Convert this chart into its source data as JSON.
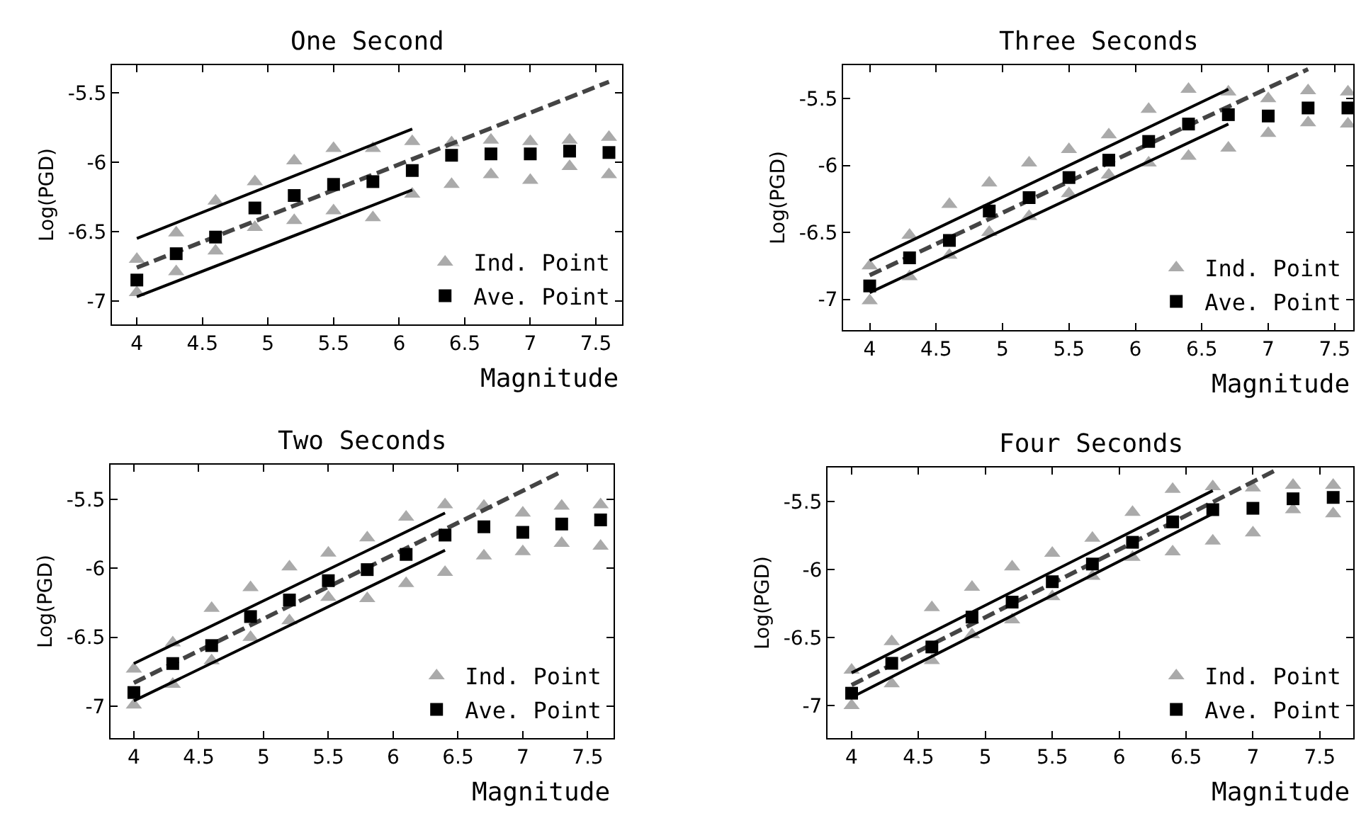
{
  "chart_data": [
    {
      "type": "scatter",
      "title": "One Second",
      "xlabel": "Magnitude",
      "ylabel": "Log(PGD)",
      "xlim": [
        3.81,
        7.7
      ],
      "ylim": [
        -7.17,
        -5.3
      ],
      "xticks": [
        4,
        4.5,
        5,
        5.5,
        6,
        6.5,
        7,
        7.5
      ],
      "yticks": [
        -7,
        -6.5,
        -6,
        -5.5
      ],
      "legend": "bottom right",
      "series": [
        {
          "name": "Ind. Point",
          "marker": "triangle",
          "color": "#aaaaaa",
          "x": [
            4,
            4,
            4.3,
            4.3,
            4.6,
            4.6,
            4.9,
            4.9,
            5.2,
            5.2,
            5.5,
            5.5,
            5.8,
            5.8,
            6.1,
            6.1,
            6.4,
            6.4,
            6.7,
            6.7,
            7.0,
            7.0,
            7.3,
            7.3,
            7.6,
            7.6
          ],
          "values": [
            -6.7,
            -6.94,
            -6.51,
            -6.79,
            -6.28,
            -6.64,
            -6.14,
            -6.47,
            -5.99,
            -6.42,
            -5.9,
            -6.35,
            -5.9,
            -6.4,
            -5.85,
            -6.23,
            -5.86,
            -6.16,
            -5.84,
            -6.09,
            -5.85,
            -6.13,
            -5.84,
            -6.03,
            -5.82,
            -6.09
          ]
        },
        {
          "type": "line",
          "line_style": "dashed",
          "color": "#444444",
          "x": [
            4,
            7.6
          ],
          "values": [
            -6.76,
            -5.42
          ]
        },
        {
          "type": "line",
          "line_style": "solid",
          "color": "#000000",
          "x": [
            4,
            6.1
          ],
          "values": [
            -6.55,
            -5.76
          ]
        },
        {
          "type": "line",
          "line_style": "solid",
          "color": "#000000",
          "x": [
            4,
            6.1
          ],
          "values": [
            -6.97,
            -6.2
          ]
        },
        {
          "name": "Ave. Point",
          "marker": "square",
          "color": "#000000",
          "x": [
            4,
            4.3,
            4.6,
            4.9,
            5.2,
            5.5,
            5.8,
            6.1,
            6.4,
            6.7,
            7.0,
            7.3,
            7.6
          ],
          "values": [
            -6.85,
            -6.66,
            -6.54,
            -6.33,
            -6.24,
            -6.16,
            -6.14,
            -6.06,
            -5.95,
            -5.94,
            -5.94,
            -5.92,
            -5.93
          ]
        }
      ]
    },
    {
      "type": "scatter",
      "title": "Three Seconds",
      "xlabel": "Magnitude",
      "ylabel": "Log(PGD)",
      "xlim": [
        3.8,
        7.64
      ],
      "ylim": [
        -7.23,
        -5.25
      ],
      "xticks": [
        4,
        4.5,
        5,
        5.5,
        6,
        6.5,
        7,
        7.5
      ],
      "yticks": [
        -7,
        -6.5,
        -6,
        -5.5
      ],
      "legend": "bottom right",
      "series": [
        {
          "name": "Ind. Point",
          "marker": "triangle",
          "color": "#aaaaaa",
          "x": [
            4,
            4,
            4.3,
            4.3,
            4.6,
            4.6,
            4.9,
            4.9,
            5.2,
            5.2,
            5.5,
            5.5,
            5.8,
            5.8,
            6.1,
            6.1,
            6.4,
            6.4,
            6.7,
            6.7,
            7.0,
            7.0,
            7.3,
            7.3,
            7.6,
            7.6
          ],
          "values": [
            -6.75,
            -7.01,
            -6.52,
            -6.83,
            -6.29,
            -6.67,
            -6.13,
            -6.5,
            -5.98,
            -6.38,
            -5.88,
            -6.21,
            -5.77,
            -6.07,
            -5.58,
            -5.98,
            -5.43,
            -5.93,
            -5.45,
            -5.87,
            -5.5,
            -5.76,
            -5.44,
            -5.68,
            -5.45,
            -5.69
          ]
        },
        {
          "type": "line",
          "line_style": "dashed",
          "color": "#444444",
          "x": [
            4,
            7.3
          ],
          "values": [
            -6.82,
            -5.28
          ]
        },
        {
          "type": "line",
          "line_style": "solid",
          "color": "#000000",
          "x": [
            4,
            6.7
          ],
          "values": [
            -6.71,
            -5.43
          ]
        },
        {
          "type": "line",
          "line_style": "solid",
          "color": "#000000",
          "x": [
            4,
            6.7
          ],
          "values": [
            -6.95,
            -5.69
          ]
        },
        {
          "name": "Ave. Point",
          "marker": "square",
          "color": "#000000",
          "x": [
            4,
            4.3,
            4.6,
            4.9,
            5.2,
            5.5,
            5.8,
            6.1,
            6.4,
            6.7,
            7.0,
            7.3,
            7.6
          ],
          "values": [
            -6.9,
            -6.69,
            -6.56,
            -6.34,
            -6.24,
            -6.09,
            -5.96,
            -5.82,
            -5.69,
            -5.62,
            -5.63,
            -5.57,
            -5.57
          ]
        }
      ]
    },
    {
      "type": "scatter",
      "title": "Two Seconds",
      "xlabel": "Magnitude",
      "ylabel": "Log(PGD)",
      "xlim": [
        3.82,
        7.7
      ],
      "ylim": [
        -7.23,
        -5.25
      ],
      "xticks": [
        4,
        4.5,
        5,
        5.5,
        6,
        6.5,
        7,
        7.5
      ],
      "yticks": [
        -7,
        -6.5,
        -6,
        -5.5
      ],
      "legend": "bottom right",
      "series": [
        {
          "name": "Ind. Point",
          "marker": "triangle",
          "color": "#aaaaaa",
          "x": [
            4,
            4,
            4.3,
            4.3,
            4.6,
            4.6,
            4.9,
            4.9,
            5.2,
            5.2,
            5.5,
            5.5,
            5.8,
            5.8,
            6.1,
            6.1,
            6.4,
            6.4,
            6.7,
            6.7,
            7.0,
            7.0,
            7.3,
            7.3,
            7.6,
            7.6
          ],
          "values": [
            -6.73,
            -6.99,
            -6.54,
            -6.84,
            -6.29,
            -6.67,
            -6.14,
            -6.5,
            -5.99,
            -6.38,
            -5.89,
            -6.21,
            -5.78,
            -6.22,
            -5.63,
            -6.11,
            -5.54,
            -6.03,
            -5.55,
            -5.91,
            -5.6,
            -5.88,
            -5.55,
            -5.82,
            -5.54,
            -5.84
          ]
        },
        {
          "type": "line",
          "line_style": "dashed",
          "color": "#444444",
          "x": [
            4,
            7.3
          ],
          "values": [
            -6.83,
            -5.3
          ]
        },
        {
          "type": "line",
          "line_style": "solid",
          "color": "#000000",
          "x": [
            4,
            6.4
          ],
          "values": [
            -6.69,
            -5.6
          ]
        },
        {
          "type": "line",
          "line_style": "solid",
          "color": "#000000",
          "x": [
            4,
            6.4
          ],
          "values": [
            -6.96,
            -5.87
          ]
        },
        {
          "name": "Ave. Point",
          "marker": "square",
          "color": "#000000",
          "x": [
            4,
            4.3,
            4.6,
            4.9,
            5.2,
            5.5,
            5.8,
            6.1,
            6.4,
            6.7,
            7.0,
            7.3,
            7.6
          ],
          "values": [
            -6.9,
            -6.69,
            -6.56,
            -6.35,
            -6.23,
            -6.09,
            -6.01,
            -5.9,
            -5.76,
            -5.7,
            -5.74,
            -5.68,
            -5.65
          ]
        }
      ]
    },
    {
      "type": "scatter",
      "title": "Four Seconds",
      "xlabel": "Magnitude",
      "ylabel": "Log(PGD)",
      "xlim": [
        3.82,
        7.75
      ],
      "ylim": [
        -7.24,
        -5.25
      ],
      "xticks": [
        4,
        4.5,
        5,
        5.5,
        6,
        6.5,
        7,
        7.5
      ],
      "yticks": [
        -7,
        -6.5,
        -6,
        -5.5
      ],
      "legend": "bottom right",
      "series": [
        {
          "name": "Ind. Point",
          "marker": "triangle",
          "color": "#aaaaaa",
          "x": [
            4,
            4,
            4.3,
            4.3,
            4.6,
            4.6,
            4.9,
            4.9,
            5.2,
            5.2,
            5.5,
            5.5,
            5.8,
            5.8,
            6.1,
            6.1,
            6.4,
            6.4,
            6.7,
            6.7,
            7.0,
            7.0,
            7.3,
            7.3,
            7.6,
            7.6
          ],
          "values": [
            -6.74,
            -7.0,
            -6.53,
            -6.84,
            -6.28,
            -6.67,
            -6.13,
            -6.48,
            -5.98,
            -6.37,
            -5.88,
            -6.2,
            -5.77,
            -6.05,
            -5.58,
            -5.91,
            -5.41,
            -5.87,
            -5.39,
            -5.79,
            -5.4,
            -5.73,
            -5.38,
            -5.56,
            -5.38,
            -5.59
          ]
        },
        {
          "type": "line",
          "line_style": "dashed",
          "color": "#444444",
          "x": [
            4,
            7.19
          ],
          "values": [
            -6.85,
            -5.26
          ]
        },
        {
          "type": "line",
          "line_style": "solid",
          "color": "#000000",
          "x": [
            4,
            6.7
          ],
          "values": [
            -6.76,
            -5.42
          ]
        },
        {
          "type": "line",
          "line_style": "solid",
          "color": "#000000",
          "x": [
            4,
            6.7
          ],
          "values": [
            -6.94,
            -5.59
          ]
        },
        {
          "name": "Ave. Point",
          "marker": "square",
          "color": "#000000",
          "x": [
            4,
            4.3,
            4.6,
            4.9,
            5.2,
            5.5,
            5.8,
            6.1,
            6.4,
            6.7,
            7.0,
            7.3,
            7.6
          ],
          "values": [
            -6.91,
            -6.69,
            -6.57,
            -6.35,
            -6.24,
            -6.09,
            -5.96,
            -5.8,
            -5.65,
            -5.56,
            -5.55,
            -5.48,
            -5.47
          ]
        }
      ]
    }
  ]
}
